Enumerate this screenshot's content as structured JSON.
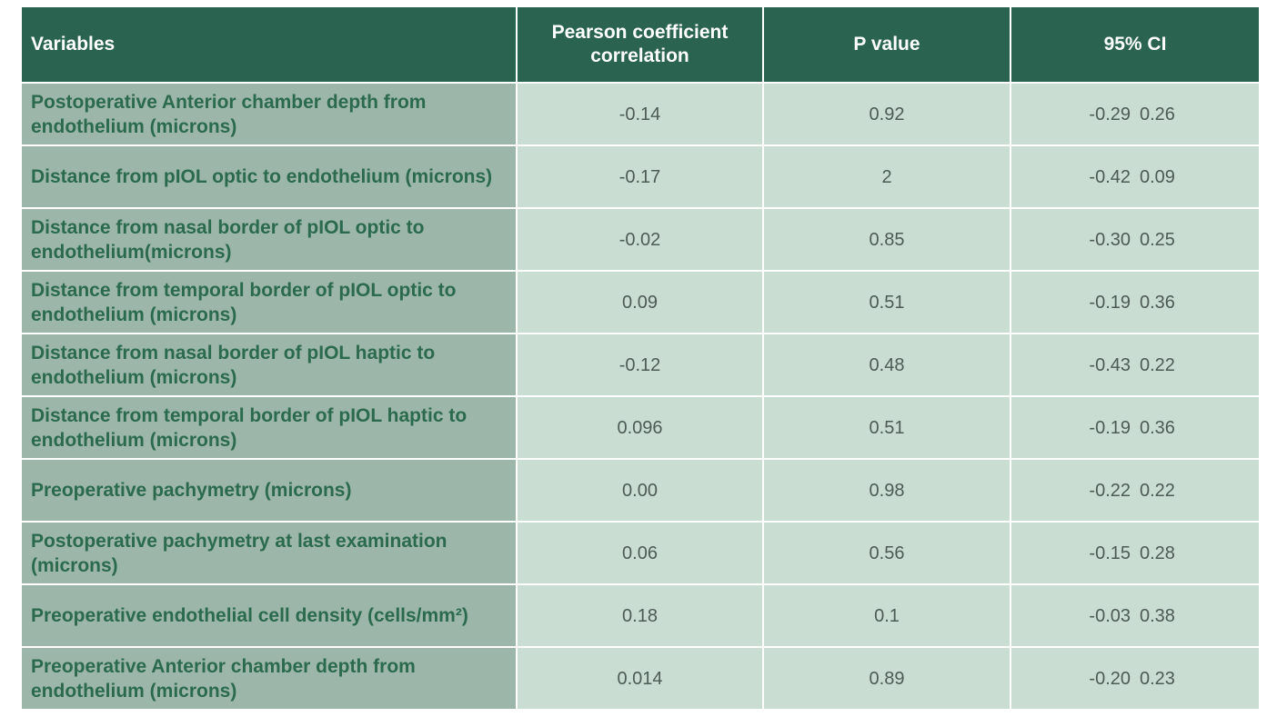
{
  "table": {
    "header": [
      "Variables",
      "Pearson coefficient correlation",
      "P value",
      "95% CI"
    ],
    "rows": [
      [
        "Postoperative Anterior chamber depth from endothelium (microns)",
        "-0.14",
        "0.92",
        "-0.29",
        "0.26"
      ],
      [
        "Distance from pIOL optic to endothelium (microns)",
        "-0.17",
        "2",
        "-0.42",
        "0.09"
      ],
      [
        "Distance from nasal border of pIOL optic to endothelium(microns)",
        "-0.02",
        "0.85",
        "-0.30",
        "0.25"
      ],
      [
        "Distance from temporal border of pIOL optic to endothelium (microns)",
        "0.09",
        "0.51",
        "-0.19",
        "0.36"
      ],
      [
        "Distance from nasal border of pIOL haptic to endothelium (microns)",
        "-0.12",
        "0.48",
        "-0.43",
        "0.22"
      ],
      [
        "Distance from temporal border of pIOL haptic to endothelium (microns)",
        "0.096",
        "0.51",
        "-0.19",
        "0.36"
      ],
      [
        "Preoperative pachymetry (microns)",
        "0.00",
        "0.98",
        "-0.22",
        "0.22"
      ],
      [
        "Postoperative pachymetry at last examination (microns)",
        "0.06",
        "0.56",
        "-0.15",
        "0.28"
      ],
      [
        "Preoperative endothelial cell density (cells/mm²)",
        "0.18",
        "0.1",
        "-0.03",
        "0.38"
      ],
      [
        "Preoperative Anterior chamber depth from endothelium (microns)",
        "0.014",
        "0.89",
        "-0.20",
        "0.23"
      ]
    ]
  }
}
